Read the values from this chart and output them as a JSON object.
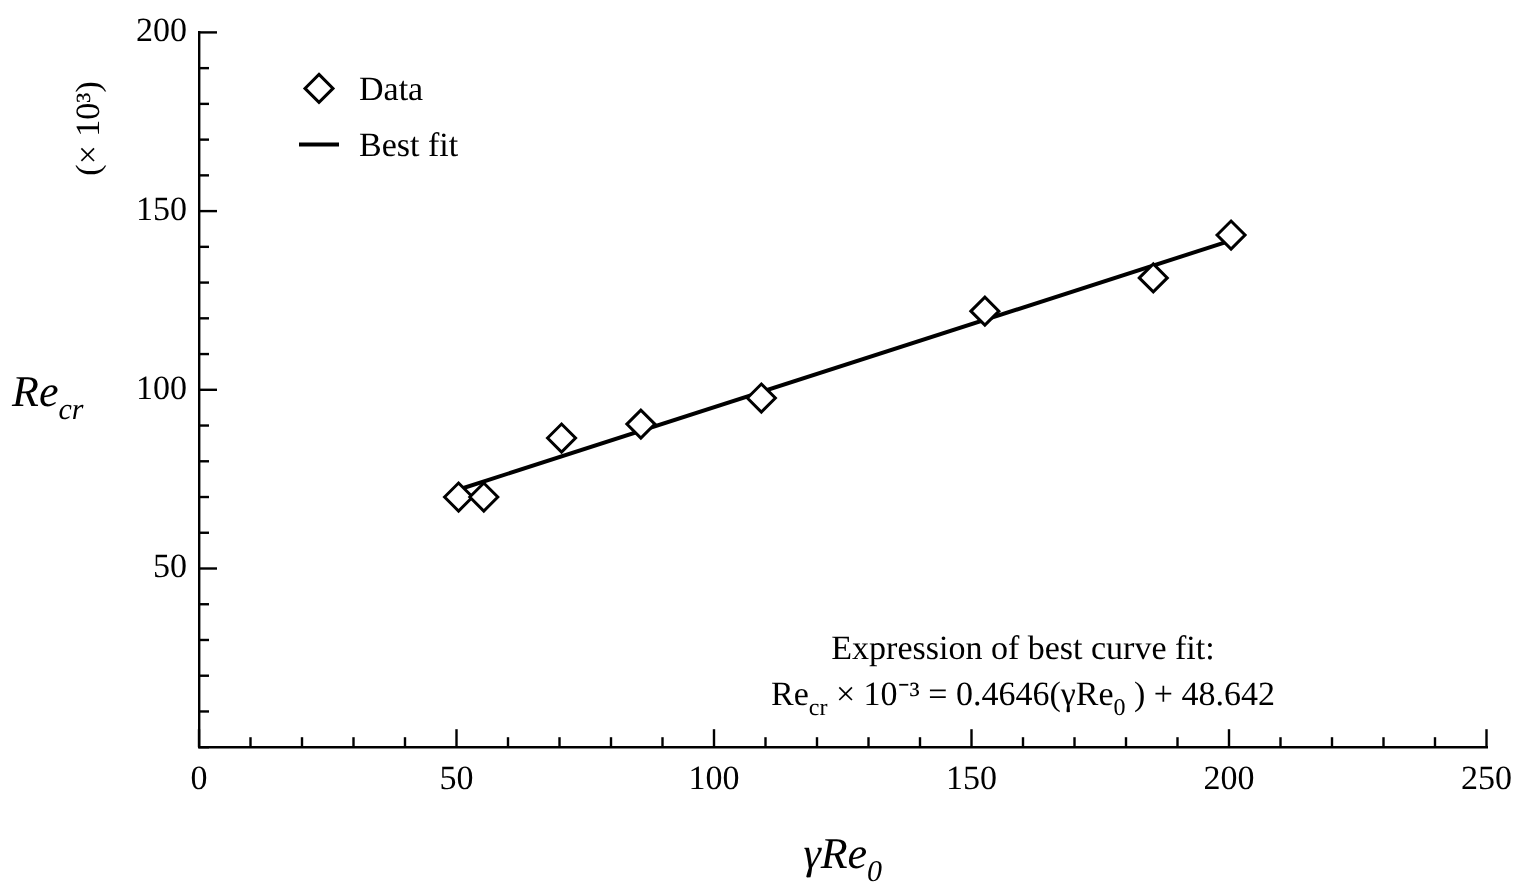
{
  "chart_data": {
    "type": "scatter",
    "xlabel": "γRe$_{0}$",
    "ylabel": "Re$_{cr}$",
    "annotations": [
      "(× 10³)",
      "Expression of best curve fit:",
      "Re$_{cr}$ × 10⁻³ = 0.4646(γRe$_{0}$ ) + 48.642"
    ],
    "x": [
      50.4,
      55.3,
      70.4,
      85.8,
      109.2,
      152.6,
      185.3,
      200.4
    ],
    "series": [
      {
        "name": "Data",
        "color": "#000000",
        "type": "scatter",
        "marker": "diamond",
        "values": [
          70.0,
          70.0,
          86.5,
          90.4,
          97.7,
          122.0,
          131.3,
          143.3
        ]
      },
      {
        "name": "Best fit",
        "color": "#000000",
        "type": "line",
        "marker": "none",
        "x": [
          50,
          200
        ],
        "values": [
          71.9,
          141.6
        ]
      }
    ],
    "xlim": [
      0,
      250
    ],
    "xticks": [
      0,
      50,
      100,
      150,
      200,
      250
    ],
    "ylim": [
      0,
      200
    ],
    "yticks": [
      50,
      100,
      150,
      200
    ],
    "grid": false,
    "legend": "top left"
  }
}
